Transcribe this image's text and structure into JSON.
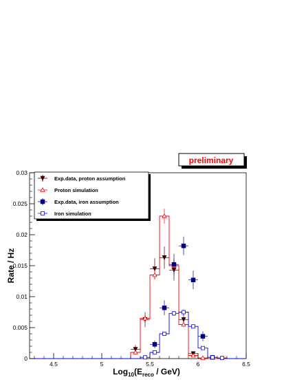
{
  "chart_data": {
    "type": "scatter",
    "xlabel": {
      "main": "Log",
      "sub1": "10",
      "mid": "(E",
      "sub2": "reco",
      "tail": " / GeV)"
    },
    "ylabel": "Rate / Hz",
    "xlim": [
      4.25,
      6.5
    ],
    "ylim": [
      0,
      0.03
    ],
    "x_ticks": [
      {
        "value": 4.5,
        "label": "4.5"
      },
      {
        "value": 5,
        "label": "5"
      },
      {
        "value": 5.5,
        "label": "5.5"
      },
      {
        "value": 6,
        "label": "6"
      },
      {
        "value": 6.5,
        "label": "6.5"
      }
    ],
    "y_ticks": [
      {
        "value": 0,
        "label": "0"
      },
      {
        "value": 0.005,
        "label": "0.005"
      },
      {
        "value": 0.01,
        "label": "0.01"
      },
      {
        "value": 0.015,
        "label": "0.015"
      },
      {
        "value": 0.02,
        "label": "0.02"
      },
      {
        "value": 0.025,
        "label": "0.025"
      },
      {
        "value": 0.03,
        "label": "0.03"
      }
    ],
    "grid": false,
    "legend_position": "top-left",
    "annotation": "preliminary",
    "annotation_color": "#ff0000",
    "series": [
      {
        "name": "Exp.data, proton assumption",
        "kind": "points",
        "marker": "triangle-down-filled",
        "color": "#3a0000",
        "x": [
          5.35,
          5.45,
          5.55,
          5.65,
          5.75,
          5.85,
          5.95
        ],
        "y": [
          0.0015,
          0.0063,
          0.0145,
          0.0163,
          0.0143,
          0.0063,
          0.0008
        ],
        "yerr": [
          0.0007,
          0.0012,
          0.0017,
          0.0018,
          0.0017,
          0.0011,
          0.0004
        ]
      },
      {
        "name": "Proton simulation",
        "kind": "histogram",
        "marker": "triangle-up-open",
        "color": "#ff0000",
        "bin_edges": [
          4.25,
          5.3,
          5.4,
          5.5,
          5.6,
          5.7,
          5.8,
          5.9,
          6.0,
          6.1,
          6.5
        ],
        "x": [
          5.35,
          5.45,
          5.55,
          5.65,
          5.75,
          5.85,
          5.95,
          6.05
        ],
        "y": [
          0.001,
          0.0065,
          0.0135,
          0.023,
          0.015,
          0.0055,
          0.0005,
          0.0001
        ],
        "yerr": [
          0.0003,
          0.0005,
          0.0007,
          0.0012,
          0.0008,
          0.0004,
          0.0002,
          0.0001
        ]
      },
      {
        "name": "Exp.data, iron assumption",
        "kind": "points",
        "marker": "square-filled",
        "color": "#00007f",
        "x": [
          5.55,
          5.65,
          5.75,
          5.85,
          5.95,
          6.05,
          6.15
        ],
        "y": [
          0.0023,
          0.0082,
          0.0152,
          0.0182,
          0.0127,
          0.0036,
          0.0002
        ],
        "yerr": [
          0.0006,
          0.0012,
          0.0017,
          0.0015,
          0.0015,
          0.0008,
          0.0002
        ]
      },
      {
        "name": "Iron simulation",
        "kind": "histogram",
        "marker": "square-open",
        "color": "#0000ff",
        "bin_edges": [
          4.25,
          5.4,
          5.5,
          5.6,
          5.7,
          5.8,
          5.9,
          6.0,
          6.1,
          6.2,
          6.3,
          6.5
        ],
        "x": [
          5.45,
          5.55,
          5.65,
          5.75,
          5.85,
          5.95,
          6.05,
          6.15,
          6.25
        ],
        "y": [
          0.0002,
          0.001,
          0.004,
          0.0073,
          0.0075,
          0.0052,
          0.0017,
          0.0002,
          0.0001
        ],
        "yerr": [
          0.0001,
          0.0002,
          0.0003,
          0.0004,
          0.0004,
          0.0003,
          0.0002,
          0.0001,
          0.0001
        ]
      }
    ]
  }
}
